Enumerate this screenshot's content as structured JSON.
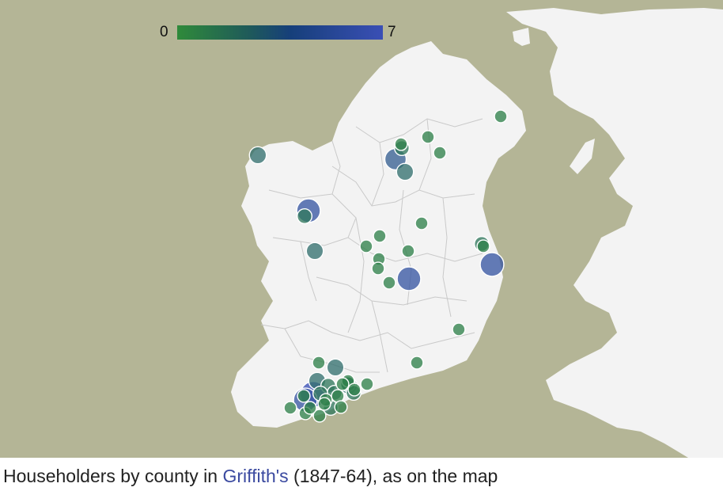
{
  "legend": {
    "min_label": "0",
    "max_label": "7",
    "min_value": 0,
    "max_value": 7,
    "gradient_colors": [
      "#2f8a3a",
      "#1f4f74",
      "#1e3c8a",
      "#3a4fb5"
    ]
  },
  "caption": {
    "prefix": "Householders by county in ",
    "link_text": "Griffith's",
    "suffix": " (1847-64), as on the map"
  },
  "colors": {
    "sea": "#b4b596",
    "land": "#f3f3f3",
    "border": "#c9c9c9",
    "marker_low": "#2f8a3a",
    "marker_high": "#3a4fb5"
  },
  "markers": [
    {
      "id": "antrim",
      "value": 1
    },
    {
      "id": "sligo-coast",
      "value": 3
    },
    {
      "id": "cavan-1",
      "value": 1
    },
    {
      "id": "cavan-2",
      "value": 2
    },
    {
      "id": "cavan-3",
      "value": 5
    },
    {
      "id": "cavan-4",
      "value": 3
    },
    {
      "id": "monaghan-1",
      "value": 1
    },
    {
      "id": "monaghan-2",
      "value": 1
    },
    {
      "id": "mayo-1",
      "value": 6
    },
    {
      "id": "mayo-2",
      "value": 2
    },
    {
      "id": "mayo-3",
      "value": 3
    },
    {
      "id": "longford",
      "value": 1
    },
    {
      "id": "westmeath-1",
      "value": 1
    },
    {
      "id": "westmeath-2",
      "value": 1
    },
    {
      "id": "meath",
      "value": 1
    },
    {
      "id": "offaly-1",
      "value": 1
    },
    {
      "id": "offaly-2",
      "value": 1
    },
    {
      "id": "offaly-3",
      "value": 1
    },
    {
      "id": "offaly-4",
      "value": 6
    },
    {
      "id": "dublin-1",
      "value": 2
    },
    {
      "id": "dublin-2",
      "value": 1
    },
    {
      "id": "dublin-3",
      "value": 6
    },
    {
      "id": "wicklow",
      "value": 1
    },
    {
      "id": "wexford",
      "value": 1
    },
    {
      "id": "cork-1",
      "value": 1
    },
    {
      "id": "cork-2",
      "value": 3
    },
    {
      "id": "cork-3",
      "value": 3
    },
    {
      "id": "cork-4",
      "value": 7
    },
    {
      "id": "cork-5",
      "value": 6
    },
    {
      "id": "cork-6",
      "value": 2
    },
    {
      "id": "cork-7",
      "value": 2
    },
    {
      "id": "cork-8",
      "value": 3
    },
    {
      "id": "cork-9",
      "value": 2
    },
    {
      "id": "cork-10",
      "value": 1
    },
    {
      "id": "cork-11",
      "value": 2
    },
    {
      "id": "cork-12",
      "value": 1
    },
    {
      "id": "cork-13",
      "value": 1
    },
    {
      "id": "cork-14",
      "value": 2
    },
    {
      "id": "cork-15",
      "value": 1
    },
    {
      "id": "cork-16",
      "value": 1
    },
    {
      "id": "cork-17",
      "value": 1
    },
    {
      "id": "cork-18",
      "value": 2
    },
    {
      "id": "cork-19",
      "value": 1
    },
    {
      "id": "cork-20",
      "value": 1
    },
    {
      "id": "cork-21",
      "value": 1
    },
    {
      "id": "cork-22",
      "value": 1
    },
    {
      "id": "cork-23",
      "value": 1
    },
    {
      "id": "cork-24",
      "value": 1
    },
    {
      "id": "cork-25",
      "value": 1
    }
  ]
}
